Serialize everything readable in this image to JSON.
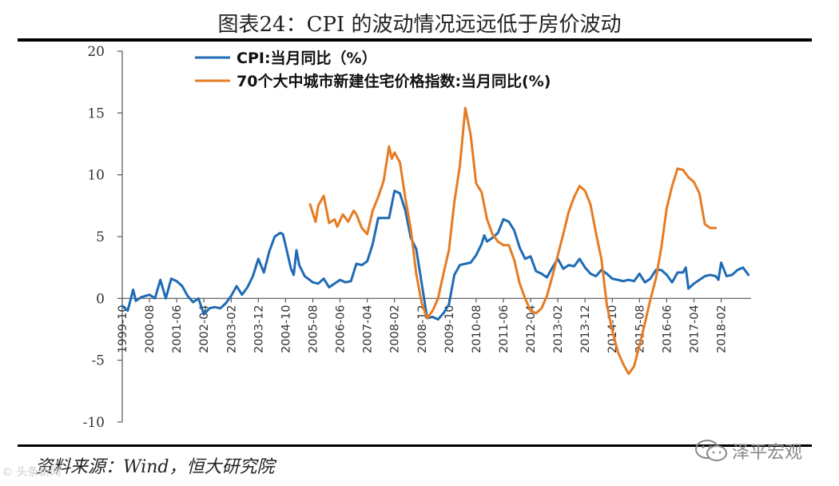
{
  "page": {
    "title": "图表24：CPI 的波动情况远远低于房价波动",
    "source": "资料来源：Wind，恒大研究院",
    "watermark": "泽平宏观",
    "watermark_icon": "wechat-icon",
    "corner_watermark": "© 头条新闻"
  },
  "chart_data": {
    "type": "line",
    "title": "图表24：CPI 的波动情况远远低于房价波动",
    "xlabel": "",
    "ylabel": "",
    "ylim": [
      -10,
      20
    ],
    "yticks": [
      20,
      15,
      10,
      5,
      0,
      -5,
      -10
    ],
    "x_range": [
      "1999-10",
      "2019-01"
    ],
    "xticks": [
      "1999-10",
      "2000-08",
      "2001-06",
      "2002-04",
      "2003-02",
      "2003-12",
      "2004-10",
      "2005-08",
      "2006-06",
      "2007-04",
      "2008-02",
      "2008-12",
      "2009-10",
      "2010-08",
      "2011-06",
      "2012-04",
      "2013-02",
      "2013-12",
      "2014-10",
      "2015-08",
      "2016-06",
      "2017-04",
      "2018-02"
    ],
    "grid": false,
    "legend_position": "top-left",
    "colors": {
      "cpi": "#1f6bb5",
      "house": "#e57c24",
      "axis": "#555555"
    },
    "series": [
      {
        "name": "CPI:当月同比（%）",
        "color": "#1f6bb5",
        "points": [
          [
            "1999-10",
            -0.6
          ],
          [
            "1999-12",
            -1.0
          ],
          [
            "2000-02",
            0.7
          ],
          [
            "2000-03",
            -0.2
          ],
          [
            "2000-05",
            0.1
          ],
          [
            "2000-08",
            0.3
          ],
          [
            "2000-10",
            0.0
          ],
          [
            "2000-12",
            1.5
          ],
          [
            "2001-02",
            0.0
          ],
          [
            "2001-04",
            1.6
          ],
          [
            "2001-06",
            1.4
          ],
          [
            "2001-08",
            1.0
          ],
          [
            "2001-10",
            0.2
          ],
          [
            "2001-12",
            -0.3
          ],
          [
            "2002-02",
            0.0
          ],
          [
            "2002-04",
            -1.3
          ],
          [
            "2002-06",
            -0.8
          ],
          [
            "2002-08",
            -0.7
          ],
          [
            "2002-10",
            -0.8
          ],
          [
            "2002-12",
            -0.4
          ],
          [
            "2003-02",
            0.2
          ],
          [
            "2003-04",
            1.0
          ],
          [
            "2003-06",
            0.3
          ],
          [
            "2003-08",
            0.9
          ],
          [
            "2003-10",
            1.8
          ],
          [
            "2003-12",
            3.2
          ],
          [
            "2004-02",
            2.1
          ],
          [
            "2004-04",
            3.8
          ],
          [
            "2004-06",
            5.0
          ],
          [
            "2004-08",
            5.3
          ],
          [
            "2004-09",
            5.2
          ],
          [
            "2004-10",
            4.3
          ],
          [
            "2004-12",
            2.4
          ],
          [
            "2005-01",
            1.9
          ],
          [
            "2005-02",
            3.9
          ],
          [
            "2005-03",
            2.7
          ],
          [
            "2005-05",
            1.8
          ],
          [
            "2005-08",
            1.3
          ],
          [
            "2005-10",
            1.2
          ],
          [
            "2005-12",
            1.6
          ],
          [
            "2006-02",
            0.9
          ],
          [
            "2006-04",
            1.2
          ],
          [
            "2006-06",
            1.5
          ],
          [
            "2006-08",
            1.3
          ],
          [
            "2006-10",
            1.4
          ],
          [
            "2006-12",
            2.8
          ],
          [
            "2007-02",
            2.7
          ],
          [
            "2007-04",
            3.0
          ],
          [
            "2007-06",
            4.4
          ],
          [
            "2007-08",
            6.5
          ],
          [
            "2007-10",
            6.5
          ],
          [
            "2007-12",
            6.5
          ],
          [
            "2008-02",
            8.7
          ],
          [
            "2008-04",
            8.5
          ],
          [
            "2008-06",
            7.1
          ],
          [
            "2008-08",
            4.9
          ],
          [
            "2008-10",
            4.0
          ],
          [
            "2008-12",
            1.2
          ],
          [
            "2009-02",
            -1.6
          ],
          [
            "2009-04",
            -1.5
          ],
          [
            "2009-06",
            -1.7
          ],
          [
            "2009-08",
            -1.2
          ],
          [
            "2009-10",
            -0.5
          ],
          [
            "2009-12",
            1.9
          ],
          [
            "2010-02",
            2.7
          ],
          [
            "2010-04",
            2.8
          ],
          [
            "2010-06",
            2.9
          ],
          [
            "2010-08",
            3.5
          ],
          [
            "2010-10",
            4.4
          ],
          [
            "2010-11",
            5.1
          ],
          [
            "2010-12",
            4.6
          ],
          [
            "2011-02",
            4.9
          ],
          [
            "2011-04",
            5.3
          ],
          [
            "2011-06",
            6.4
          ],
          [
            "2011-08",
            6.2
          ],
          [
            "2011-10",
            5.5
          ],
          [
            "2011-12",
            4.1
          ],
          [
            "2012-02",
            3.2
          ],
          [
            "2012-04",
            3.4
          ],
          [
            "2012-06",
            2.2
          ],
          [
            "2012-08",
            2.0
          ],
          [
            "2012-10",
            1.7
          ],
          [
            "2012-12",
            2.5
          ],
          [
            "2013-02",
            3.2
          ],
          [
            "2013-04",
            2.4
          ],
          [
            "2013-06",
            2.7
          ],
          [
            "2013-08",
            2.6
          ],
          [
            "2013-10",
            3.2
          ],
          [
            "2013-12",
            2.5
          ],
          [
            "2014-02",
            2.0
          ],
          [
            "2014-04",
            1.8
          ],
          [
            "2014-06",
            2.3
          ],
          [
            "2014-08",
            2.0
          ],
          [
            "2014-10",
            1.6
          ],
          [
            "2014-12",
            1.5
          ],
          [
            "2015-02",
            1.4
          ],
          [
            "2015-04",
            1.5
          ],
          [
            "2015-06",
            1.4
          ],
          [
            "2015-08",
            2.0
          ],
          [
            "2015-10",
            1.3
          ],
          [
            "2015-12",
            1.6
          ],
          [
            "2016-02",
            2.3
          ],
          [
            "2016-04",
            2.3
          ],
          [
            "2016-06",
            1.9
          ],
          [
            "2016-08",
            1.3
          ],
          [
            "2016-10",
            2.1
          ],
          [
            "2016-12",
            2.1
          ],
          [
            "2017-01",
            2.5
          ],
          [
            "2017-02",
            0.8
          ],
          [
            "2017-04",
            1.2
          ],
          [
            "2017-06",
            1.5
          ],
          [
            "2017-08",
            1.8
          ],
          [
            "2017-10",
            1.9
          ],
          [
            "2017-12",
            1.8
          ],
          [
            "2018-01",
            1.5
          ],
          [
            "2018-02",
            2.9
          ],
          [
            "2018-04",
            1.8
          ],
          [
            "2018-06",
            1.9
          ],
          [
            "2018-08",
            2.3
          ],
          [
            "2018-10",
            2.5
          ],
          [
            "2018-12",
            1.9
          ]
        ]
      },
      {
        "name": "70个大中城市新建住宅价格指数:当月同比(%)",
        "color": "#e57c24",
        "points": [
          [
            "2005-07",
            7.6
          ],
          [
            "2005-09",
            6.2
          ],
          [
            "2005-10",
            7.5
          ],
          [
            "2005-12",
            8.3
          ],
          [
            "2006-02",
            6.1
          ],
          [
            "2006-04",
            6.4
          ],
          [
            "2006-05",
            5.8
          ],
          [
            "2006-07",
            6.8
          ],
          [
            "2006-09",
            6.2
          ],
          [
            "2006-11",
            7.1
          ],
          [
            "2006-12",
            6.8
          ],
          [
            "2007-02",
            5.7
          ],
          [
            "2007-04",
            5.2
          ],
          [
            "2007-06",
            7.1
          ],
          [
            "2007-08",
            8.2
          ],
          [
            "2007-10",
            9.5
          ],
          [
            "2007-12",
            12.3
          ],
          [
            "2008-01",
            11.3
          ],
          [
            "2008-02",
            11.8
          ],
          [
            "2008-04",
            11.0
          ],
          [
            "2008-06",
            8.1
          ],
          [
            "2008-08",
            5.6
          ],
          [
            "2008-10",
            2.0
          ],
          [
            "2008-12",
            -0.4
          ],
          [
            "2009-02",
            -1.6
          ],
          [
            "2009-04",
            -1.0
          ],
          [
            "2009-06",
            0.0
          ],
          [
            "2009-08",
            2.0
          ],
          [
            "2009-10",
            3.9
          ],
          [
            "2009-12",
            7.8
          ],
          [
            "2010-02",
            10.7
          ],
          [
            "2010-04",
            15.4
          ],
          [
            "2010-06",
            13.2
          ],
          [
            "2010-08",
            9.3
          ],
          [
            "2010-10",
            8.6
          ],
          [
            "2010-12",
            6.4
          ],
          [
            "2011-02",
            5.2
          ],
          [
            "2011-04",
            4.6
          ],
          [
            "2011-06",
            4.3
          ],
          [
            "2011-08",
            4.3
          ],
          [
            "2011-10",
            3.1
          ],
          [
            "2011-12",
            1.2
          ],
          [
            "2012-02",
            0.0
          ],
          [
            "2012-04",
            -1.0
          ],
          [
            "2012-06",
            -1.2
          ],
          [
            "2012-08",
            -0.8
          ],
          [
            "2012-10",
            0.2
          ],
          [
            "2012-12",
            1.8
          ],
          [
            "2013-02",
            3.5
          ],
          [
            "2013-04",
            5.2
          ],
          [
            "2013-06",
            7.0
          ],
          [
            "2013-08",
            8.2
          ],
          [
            "2013-10",
            9.1
          ],
          [
            "2013-12",
            8.7
          ],
          [
            "2014-02",
            7.6
          ],
          [
            "2014-04",
            5.3
          ],
          [
            "2014-06",
            3.2
          ],
          [
            "2014-08",
            -0.5
          ],
          [
            "2014-10",
            -2.6
          ],
          [
            "2014-12",
            -4.3
          ],
          [
            "2015-02",
            -5.3
          ],
          [
            "2015-04",
            -6.1
          ],
          [
            "2015-06",
            -5.5
          ],
          [
            "2015-08",
            -3.8
          ],
          [
            "2015-10",
            -2.0
          ],
          [
            "2015-12",
            -0.1
          ],
          [
            "2016-02",
            1.6
          ],
          [
            "2016-04",
            4.1
          ],
          [
            "2016-06",
            7.3
          ],
          [
            "2016-08",
            9.1
          ],
          [
            "2016-10",
            10.5
          ],
          [
            "2016-12",
            10.4
          ],
          [
            "2017-02",
            9.8
          ],
          [
            "2017-04",
            9.4
          ],
          [
            "2017-06",
            8.5
          ],
          [
            "2017-08",
            6.0
          ],
          [
            "2017-10",
            5.7
          ],
          [
            "2017-12",
            5.7
          ]
        ]
      }
    ]
  }
}
